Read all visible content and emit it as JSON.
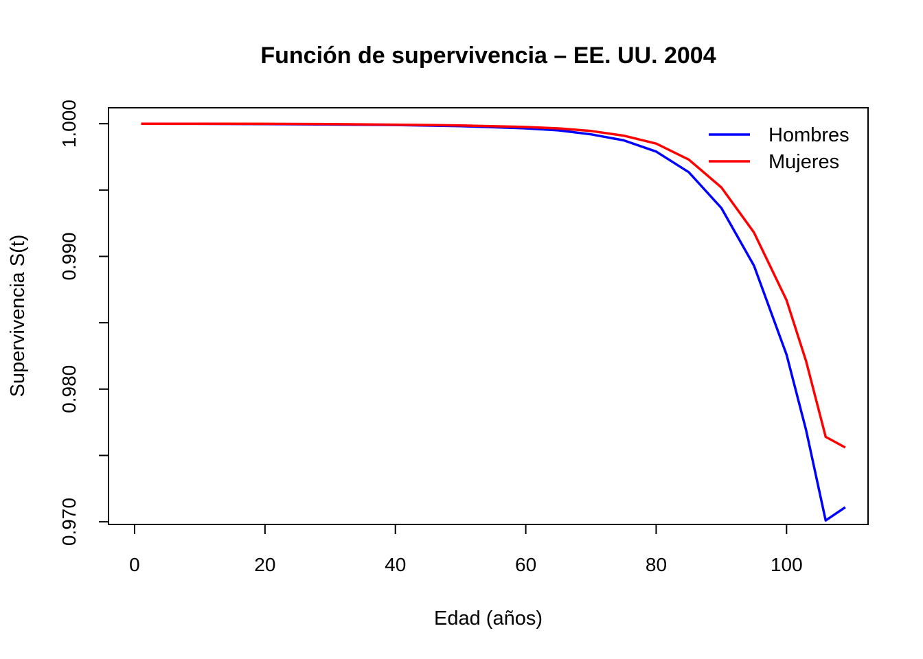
{
  "chart_data": {
    "type": "line",
    "title": "Función de supervivencia – EE. UU. 2004",
    "xlabel": "Edad (años)",
    "ylabel": "Supervivencia S(t)",
    "xlim": [
      -4,
      112.5
    ],
    "ylim": [
      0.9698,
      1.0012
    ],
    "x_ticks": [
      0,
      20,
      40,
      60,
      80,
      100
    ],
    "x_tick_labels": [
      "0",
      "20",
      "40",
      "60",
      "80",
      "100"
    ],
    "y_ticks": [
      0.97,
      0.975,
      0.98,
      0.985,
      0.99,
      0.995,
      1.0
    ],
    "y_tick_labels": [
      "0.970",
      "",
      "0.980",
      "",
      "0.990",
      "",
      "1.000"
    ],
    "grid": false,
    "legend_position": "top-right",
    "series": [
      {
        "name": "Hombres",
        "color": "#0000ff",
        "x": [
          1,
          10,
          20,
          30,
          40,
          50,
          60,
          65,
          70,
          75,
          80,
          85,
          90,
          95,
          100,
          103,
          106,
          109
        ],
        "y": [
          1.0,
          0.99999,
          0.99997,
          0.99994,
          0.9999,
          0.99982,
          0.99965,
          0.9995,
          0.9992,
          0.99875,
          0.9979,
          0.99635,
          0.99365,
          0.9893,
          0.9826,
          0.9769,
          0.9701,
          0.9711
        ]
      },
      {
        "name": "Mujeres",
        "color": "#ff0000",
        "x": [
          1,
          10,
          20,
          30,
          40,
          50,
          60,
          65,
          70,
          75,
          80,
          85,
          90,
          95,
          100,
          103,
          106,
          109
        ],
        "y": [
          1.0,
          1.0,
          0.99999,
          0.99997,
          0.99993,
          0.99987,
          0.99975,
          0.99965,
          0.99945,
          0.9991,
          0.9985,
          0.9973,
          0.9952,
          0.9918,
          0.9867,
          0.9821,
          0.9764,
          0.9756
        ]
      }
    ]
  }
}
